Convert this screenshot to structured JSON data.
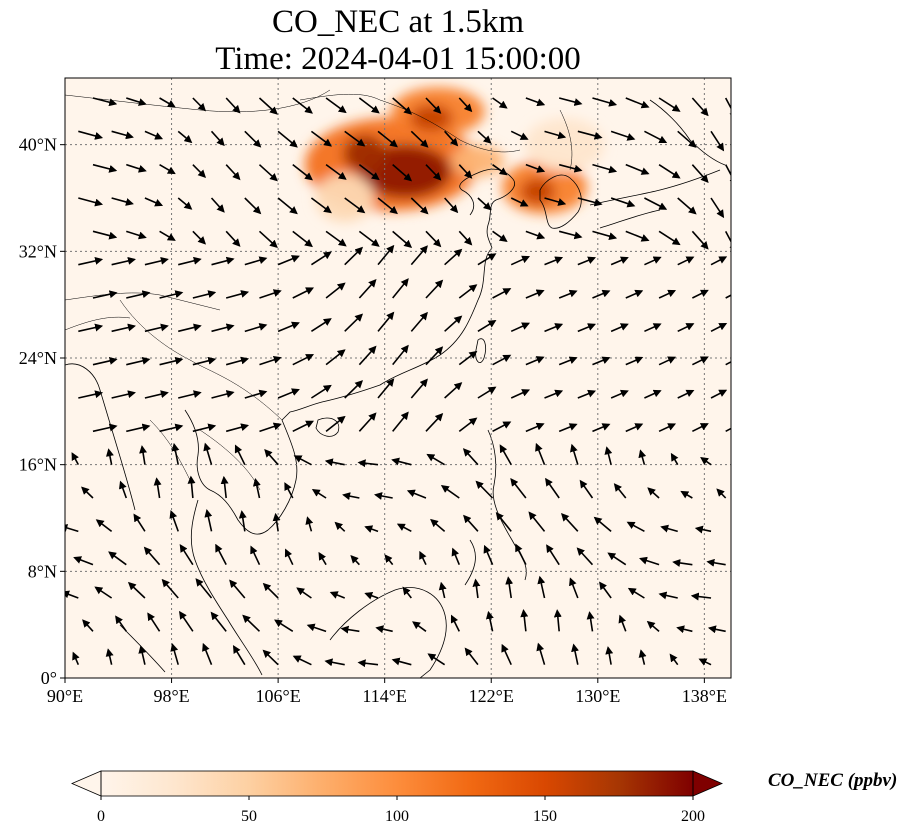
{
  "title": {
    "line1": "CO_NEC at 1.5km",
    "line2": "Time: 2024-04-01 15:00:00"
  },
  "map": {
    "lon_range": [
      90,
      140
    ],
    "lat_range": [
      0,
      45
    ],
    "lon_ticks": [
      {
        "value": 90,
        "label": "90°E"
      },
      {
        "value": 98,
        "label": "98°E"
      },
      {
        "value": 106,
        "label": "106°E"
      },
      {
        "value": 114,
        "label": "114°E"
      },
      {
        "value": 122,
        "label": "122°E"
      },
      {
        "value": 130,
        "label": "130°E"
      },
      {
        "value": 138,
        "label": "138°E"
      }
    ],
    "lat_ticks": [
      {
        "value": 0,
        "label": "0°"
      },
      {
        "value": 8,
        "label": "8°N"
      },
      {
        "value": 16,
        "label": "16°N"
      },
      {
        "value": 24,
        "label": "24°N"
      },
      {
        "value": 32,
        "label": "32°N"
      },
      {
        "value": 40,
        "label": "40°N"
      }
    ],
    "gridlines": true,
    "background_color": "#fff5eb",
    "plumes": [
      {
        "lon": 114.5,
        "lat": 38.5,
        "rx": 6.5,
        "ry": 3.5,
        "value": 120
      },
      {
        "lon": 115.5,
        "lat": 38.0,
        "rx": 3.5,
        "ry": 2.0,
        "value": 190
      },
      {
        "lon": 112.5,
        "lat": 39.3,
        "rx": 1.6,
        "ry": 1.4,
        "value": 180
      },
      {
        "lon": 118.0,
        "lat": 42.5,
        "rx": 3.5,
        "ry": 1.8,
        "value": 110
      },
      {
        "lon": 117.5,
        "lat": 42.0,
        "rx": 1.6,
        "ry": 1.0,
        "value": 160
      },
      {
        "lon": 126.0,
        "lat": 36.8,
        "rx": 3.2,
        "ry": 2.0,
        "value": 110
      },
      {
        "lon": 125.5,
        "lat": 36.5,
        "rx": 1.3,
        "ry": 1.0,
        "value": 160
      },
      {
        "lon": 121.0,
        "lat": 38.8,
        "rx": 2.0,
        "ry": 1.2,
        "value": 70
      },
      {
        "lon": 111.0,
        "lat": 36.0,
        "rx": 2.2,
        "ry": 1.8,
        "value": 40
      },
      {
        "lon": 127.5,
        "lat": 40.0,
        "rx": 3.0,
        "ry": 2.0,
        "value": 25
      }
    ],
    "wind_grid": {
      "lon_start": 91,
      "lon_step": 2.5,
      "lat_start": 1,
      "lat_step": 2.5,
      "cols": 20,
      "rows": 18
    }
  },
  "colorbar": {
    "min": 0,
    "max": 200,
    "extend": "both",
    "cmap": [
      "#fff5eb",
      "#fee6ce",
      "#fdd0a2",
      "#fdae6b",
      "#fd8d3c",
      "#f16913",
      "#d94801",
      "#a63603",
      "#7f0000"
    ],
    "ticks": [
      {
        "value": 0,
        "label": "0"
      },
      {
        "value": 50,
        "label": "50"
      },
      {
        "value": 100,
        "label": "100"
      },
      {
        "value": 150,
        "label": "150"
      },
      {
        "value": 200,
        "label": "200"
      }
    ],
    "label": "CO_NEC (ppbv)"
  }
}
